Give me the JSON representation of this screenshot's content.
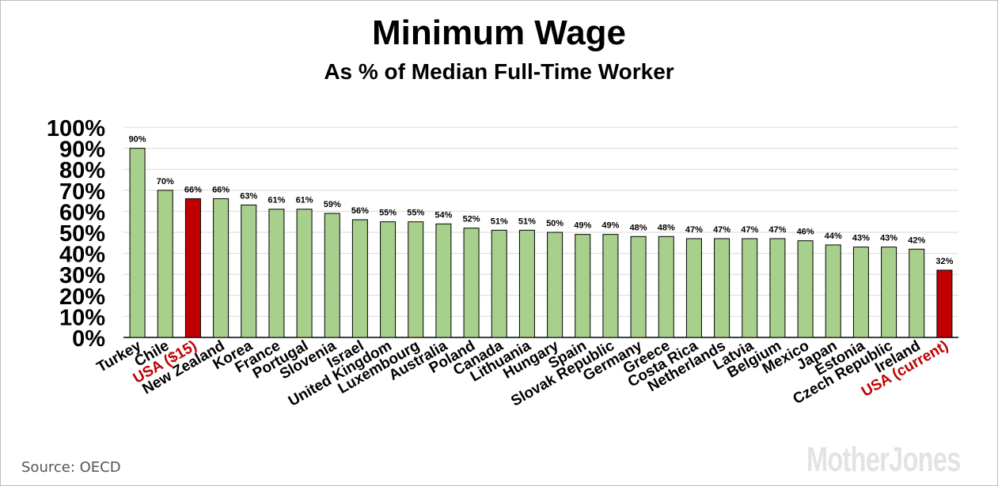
{
  "chart_data": {
    "type": "bar",
    "title": "Minimum Wage",
    "subtitle": "As % of Median Full-Time Worker",
    "categories": [
      "Turkey",
      "Chile",
      "USA ($15)",
      "New Zealand",
      "Korea",
      "France",
      "Portugal",
      "Slovenia",
      "Israel",
      "United Kingdom",
      "Luxembourg",
      "Australia",
      "Poland",
      "Canada",
      "Lithuania",
      "Hungary",
      "Spain",
      "Slovak Republic",
      "Germany",
      "Greece",
      "Costa Rica",
      "Netherlands",
      "Latvia",
      "Belgium",
      "Mexico",
      "Japan",
      "Estonia",
      "Czech Republic",
      "Ireland",
      "USA (current)"
    ],
    "values": [
      90,
      70,
      66,
      66,
      63,
      61,
      61,
      59,
      56,
      55,
      55,
      54,
      52,
      51,
      51,
      50,
      49,
      49,
      48,
      48,
      47,
      47,
      47,
      47,
      46,
      44,
      43,
      43,
      42,
      32
    ],
    "highlight": [
      "USA ($15)",
      "USA (current)"
    ],
    "yticks": [
      "0%",
      "10%",
      "20%",
      "30%",
      "40%",
      "50%",
      "60%",
      "70%",
      "80%",
      "90%",
      "100%"
    ],
    "ylim": [
      0,
      100
    ],
    "grid": true,
    "colors": {
      "bar": "#a8d08d",
      "highlight": "#c00000",
      "gridline": "#d9d9d9",
      "highlight_label": "#c00000"
    }
  },
  "source": "Source:  OECD",
  "logo": "MotherJones"
}
